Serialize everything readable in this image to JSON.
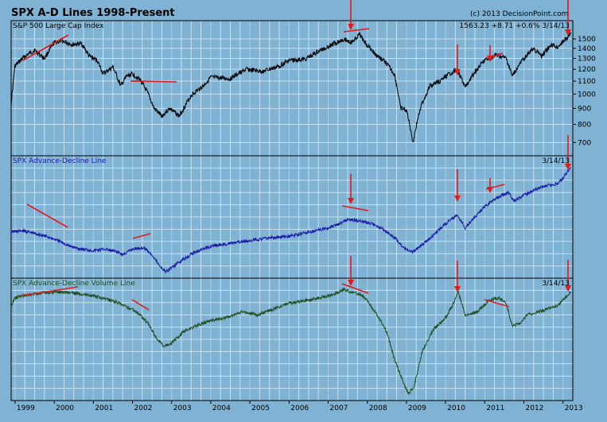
{
  "title": "SPX A-D Lines 1998-Present",
  "credit": "(c) 2013 DecisionPoint.com",
  "colors": {
    "frame": "#7fb2d3",
    "grid": "#c8e3f3",
    "spx": "#000000",
    "ad": "#1a1aa6",
    "adv": "#1f4d1f",
    "annotation": "#e31a1a"
  },
  "chart_data": [
    {
      "type": "line",
      "panel": "top",
      "label": "S&P 500 Large Cap Index",
      "readout": "1563.23  +8.71  +0.6%   3/14/13",
      "y_scale": "log",
      "ylim": [
        650,
        1600
      ],
      "y_ticks": [
        "1500",
        "1400",
        "1300",
        "1200",
        "1100",
        "1000",
        "900",
        "800",
        "700"
      ],
      "x_range": [
        1998.9,
        2013.25
      ],
      "x_ticks": [
        "1999",
        "2000",
        "2001",
        "2002",
        "2003",
        "2004",
        "2005",
        "2006",
        "2007",
        "2008",
        "2009",
        "2010",
        "2011",
        "2012",
        "2013"
      ],
      "series": [
        {
          "x": [
            1998.9,
            1999.0,
            1999.25,
            1999.5,
            1999.75,
            2000.0,
            2000.2,
            2000.45,
            2000.7,
            2000.9,
            2001.1,
            2001.25,
            2001.5,
            2001.7,
            2001.85,
            2002.0,
            2002.2,
            2002.4,
            2002.55,
            2002.75,
            2002.95,
            2003.2,
            2003.5,
            2003.8,
            2004.0,
            2004.5,
            2004.9,
            2005.3,
            2005.7,
            2006.0,
            2006.4,
            2006.8,
            2007.1,
            2007.4,
            2007.6,
            2007.8,
            2007.95,
            2008.2,
            2008.45,
            2008.7,
            2008.85,
            2009.0,
            2009.17,
            2009.35,
            2009.6,
            2009.9,
            2010.15,
            2010.3,
            2010.5,
            2010.75,
            2011.0,
            2011.3,
            2011.55,
            2011.7,
            2011.85,
            2012.0,
            2012.25,
            2012.45,
            2012.7,
            2012.85,
            2013.0,
            2013.2
          ],
          "y": [
            930,
            1230,
            1320,
            1380,
            1300,
            1460,
            1480,
            1440,
            1450,
            1320,
            1280,
            1160,
            1220,
            1060,
            1140,
            1160,
            1110,
            1000,
            900,
            850,
            900,
            850,
            990,
            1060,
            1130,
            1120,
            1200,
            1180,
            1220,
            1280,
            1290,
            1380,
            1440,
            1500,
            1460,
            1550,
            1460,
            1340,
            1270,
            1150,
            900,
            890,
            700,
            900,
            1060,
            1110,
            1170,
            1200,
            1050,
            1180,
            1280,
            1330,
            1300,
            1140,
            1220,
            1300,
            1400,
            1320,
            1440,
            1410,
            1470,
            1563
          ]
        }
      ]
    },
    {
      "type": "line",
      "panel": "middle",
      "label": "SPX Advance-Decline Line",
      "readout": "3/14/13",
      "x_range": [
        1998.9,
        2013.25
      ],
      "series": [
        {
          "x": [
            1998.9,
            1999.2,
            1999.5,
            1999.8,
            2000.1,
            2000.4,
            2000.7,
            2001.0,
            2001.3,
            2001.6,
            2001.75,
            2002.0,
            2002.3,
            2002.5,
            2002.7,
            2002.85,
            2003.0,
            2003.3,
            2003.6,
            2004.0,
            2004.5,
            2005.0,
            2005.5,
            2006.0,
            2006.5,
            2007.0,
            2007.3,
            2007.5,
            2007.8,
            2008.1,
            2008.4,
            2008.7,
            2008.9,
            2009.15,
            2009.4,
            2009.7,
            2010.0,
            2010.3,
            2010.5,
            2010.8,
            2011.0,
            2011.3,
            2011.6,
            2011.75,
            2012.0,
            2012.3,
            2012.6,
            2012.85,
            2013.0,
            2013.2
          ],
          "y": [
            0,
            1,
            -1,
            -3,
            -6,
            -10,
            -12,
            -13,
            -12,
            -14,
            -16,
            -12,
            -11,
            -16,
            -24,
            -28,
            -25,
            -19,
            -14,
            -10,
            -8,
            -6,
            -4,
            -3,
            0,
            3,
            6,
            9,
            8,
            6,
            2,
            -4,
            -10,
            -14,
            -9,
            -2,
            6,
            12,
            3,
            12,
            18,
            24,
            28,
            22,
            26,
            30,
            33,
            34,
            38,
            46
          ]
        }
      ]
    },
    {
      "type": "line",
      "panel": "bottom",
      "label": "SPX Advance-Decline Volume Line",
      "readout": "3/14/13",
      "x_range": [
        1998.9,
        2013.25
      ],
      "series": [
        {
          "x": [
            1998.9,
            1999.0,
            1999.3,
            1999.6,
            2000.0,
            2000.3,
            2000.6,
            2000.9,
            2001.2,
            2001.5,
            2001.8,
            2002.0,
            2002.2,
            2002.4,
            2002.6,
            2002.8,
            2003.0,
            2003.3,
            2003.6,
            2004.0,
            2004.4,
            2004.8,
            2005.2,
            2005.6,
            2006.0,
            2006.4,
            2006.8,
            2007.1,
            2007.4,
            2007.6,
            2007.85,
            2008.0,
            2008.25,
            2008.5,
            2008.7,
            2008.9,
            2009.05,
            2009.2,
            2009.4,
            2009.7,
            2010.0,
            2010.2,
            2010.32,
            2010.5,
            2010.8,
            2011.1,
            2011.35,
            2011.55,
            2011.7,
            2011.9,
            2012.1,
            2012.35,
            2012.6,
            2012.85,
            2013.05,
            2013.2
          ],
          "y": [
            -8,
            -2,
            0,
            1,
            2,
            2,
            1,
            0,
            -2,
            -4,
            -8,
            -10,
            -14,
            -20,
            -30,
            -36,
            -34,
            -26,
            -22,
            -18,
            -16,
            -12,
            -14,
            -10,
            -6,
            -4,
            -2,
            0,
            4,
            2,
            0,
            -4,
            -14,
            -26,
            -46,
            -60,
            -70,
            -64,
            -40,
            -24,
            -16,
            -6,
            2,
            -14,
            -12,
            -4,
            -2,
            -6,
            -22,
            -20,
            -14,
            -12,
            -10,
            -8,
            -2,
            2
          ]
        }
      ]
    }
  ]
}
